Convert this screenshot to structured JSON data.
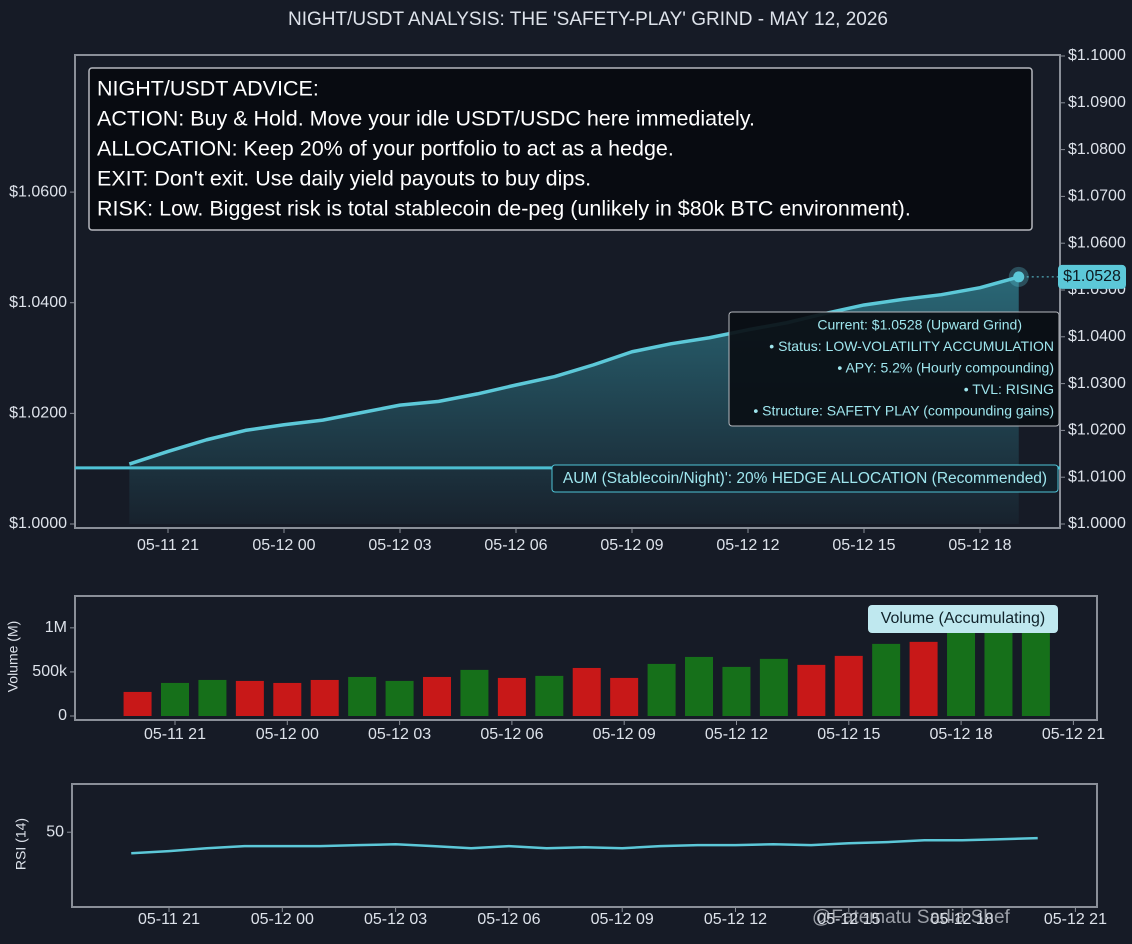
{
  "chart_data": [
    {
      "type": "line",
      "title": "NIGHT/USDT ANALYSIS: THE 'SAFETY-PLAY' GRIND - MAY 12, 2026",
      "categories": [
        "05-11 20",
        "05-11 21",
        "05-11 22",
        "05-11 23",
        "05-12 00",
        "05-12 01",
        "05-12 02",
        "05-12 03",
        "05-12 04",
        "05-12 05",
        "05-12 06",
        "05-12 07",
        "05-12 08",
        "05-12 09",
        "05-12 10",
        "05-12 11",
        "05-12 12",
        "05-12 13",
        "05-12 14",
        "05-12 15",
        "05-12 16",
        "05-12 17",
        "05-12 18",
        "05-12 19"
      ],
      "xticks": [
        "05-11 21",
        "05-12 00",
        "05-12 03",
        "05-12 06",
        "05-12 09",
        "05-12 12",
        "05-12 15",
        "05-12 18"
      ],
      "series": [
        {
          "color": "#5cc8d8",
          "axis": "y2",
          "values": [
            1.0128,
            1.0155,
            1.018,
            1.02,
            1.0212,
            1.0222,
            1.0238,
            1.0254,
            1.0262,
            1.0278,
            1.0297,
            1.0315,
            1.034,
            1.0368,
            1.0385,
            1.0398,
            1.0415,
            1.043,
            1.045,
            1.0468,
            1.048,
            1.049,
            1.0505,
            1.0528
          ]
        }
      ],
      "ylim": [
        1.0,
        1.0846
      ],
      "yticks": [
        {
          "value": 1.0,
          "label": "$1.0000"
        },
        {
          "value": 1.02,
          "label": "$1.0200"
        },
        {
          "value": 1.04,
          "label": "$1.0400"
        },
        {
          "value": 1.06,
          "label": "$1.0600"
        }
      ],
      "y2lim": [
        1.0,
        1.1
      ],
      "y2ticks": [
        {
          "value": 1.0,
          "label": "$1.0000"
        },
        {
          "value": 1.01,
          "label": "$1.0100"
        },
        {
          "value": 1.02,
          "label": "$1.0200"
        },
        {
          "value": 1.03,
          "label": "$1.0300"
        },
        {
          "value": 1.04,
          "label": "$1.0400"
        },
        {
          "value": 1.05,
          "label": "$1.0500"
        },
        {
          "value": 1.06,
          "label": "$1.0600"
        },
        {
          "value": 1.07,
          "label": "$1.0700"
        },
        {
          "value": 1.08,
          "label": "$1.0800"
        },
        {
          "value": 1.09,
          "label": "$1.0900"
        },
        {
          "value": 1.1,
          "label": "$1.1000"
        }
      ],
      "price_tag": "$1.0528",
      "advice": [
        "NIGHT/USDT ADVICE:",
        "ACTION: Buy & Hold. Move your idle USDT/USDC here immediately.",
        "ALLOCATION: Keep 20% of your portfolio to act as a hedge.",
        "EXIT: Don't exit. Use daily yield payouts to buy dips.",
        "RISK: Low. Biggest risk is total stablecoin de-peg (unlikely in $80k BTC environment)."
      ],
      "info": [
        "Current: $1.0528 (Upward Grind)",
        "• Status: LOW-VOLATILITY ACCUMULATION",
        "• APY: 5.2% (Hourly compounding)",
        "• TVL: RISING",
        "• Structure: SAFETY PLAY (compounding gains)"
      ],
      "hedge_line": {
        "label": "AUM (Stablecoin/Night)': 20% HEDGE ALLOCATION (Recommended)",
        "value": 1.012
      }
    },
    {
      "type": "bar",
      "ylabel": "Volume (M)",
      "categories": [
        "05-11 20",
        "05-11 21",
        "05-11 22",
        "05-11 23",
        "05-12 00",
        "05-12 01",
        "05-12 02",
        "05-12 03",
        "05-12 04",
        "05-12 05",
        "05-12 06",
        "05-12 07",
        "05-12 08",
        "05-12 09",
        "05-12 10",
        "05-12 11",
        "05-12 12",
        "05-12 13",
        "05-12 14",
        "05-12 15",
        "05-12 16",
        "05-12 17",
        "05-12 18",
        "05-12 19",
        "05-12 20"
      ],
      "xticks": [
        "05-11 21",
        "05-12 00",
        "05-12 03",
        "05-12 06",
        "05-12 09",
        "05-12 12",
        "05-12 15",
        "05-12 18",
        "05-12 21"
      ],
      "series": [
        {
          "name": "Volume (Accumulating)",
          "values": [
            273000,
            375000,
            409000,
            398000,
            375000,
            409000,
            443000,
            398000,
            443000,
            523000,
            432000,
            455000,
            545000,
            432000,
            591000,
            670000,
            557000,
            648000,
            580000,
            682000,
            818000,
            841000,
            950000,
            950000,
            950000
          ],
          "colors": [
            "#c81818",
            "#16701a",
            "#16701a",
            "#c81818",
            "#c81818",
            "#c81818",
            "#16701a",
            "#16701a",
            "#c81818",
            "#16701a",
            "#c81818",
            "#16701a",
            "#c81818",
            "#c81818",
            "#16701a",
            "#16701a",
            "#16701a",
            "#16701a",
            "#c81818",
            "#c81818",
            "#16701a",
            "#c81818",
            "#16701a",
            "#16701a",
            "#16701a"
          ]
        }
      ],
      "ylim": [
        0,
        1350000
      ],
      "yticks": [
        0,
        {
          "value": 500000,
          "label": "500k"
        },
        {
          "value": 1000000,
          "label": "1M"
        }
      ]
    },
    {
      "type": "line",
      "ylabel": "RSI (14)",
      "categories": [
        "05-11 20",
        "05-11 21",
        "05-11 22",
        "05-11 23",
        "05-12 00",
        "05-12 01",
        "05-12 02",
        "05-12 03",
        "05-12 04",
        "05-12 05",
        "05-12 06",
        "05-12 07",
        "05-12 08",
        "05-12 09",
        "05-12 10",
        "05-12 11",
        "05-12 12",
        "05-12 13",
        "05-12 14",
        "05-12 15",
        "05-12 16",
        "05-12 17",
        "05-12 18",
        "05-12 19",
        "05-12 20"
      ],
      "xticks": [
        "05-11 21",
        "05-12 00",
        "05-12 03",
        "05-12 06",
        "05-12 09",
        "05-12 12",
        "05-12 15",
        "05-12 18",
        "05-12 21"
      ],
      "series": [
        {
          "color": "#5cc8d8",
          "values": [
            41.1,
            42.0,
            43.2,
            44.1,
            44.1,
            44.1,
            44.5,
            44.9,
            44.1,
            43.2,
            44.1,
            43.2,
            43.6,
            43.2,
            44.1,
            44.5,
            44.5,
            44.9,
            44.5,
            45.3,
            45.8,
            46.6,
            46.6,
            47.0,
            47.5
          ]
        }
      ],
      "ylim": [
        20,
        70
      ],
      "yticks": [
        50
      ],
      "watermark": "@Fatematu Sadia Shef"
    }
  ]
}
